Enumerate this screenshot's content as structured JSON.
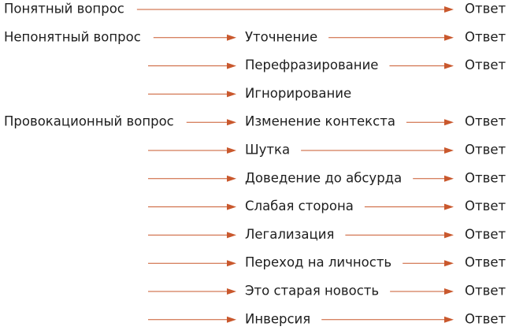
{
  "rows": [
    {
      "question": "Понятный вопрос",
      "answer": "Ответ"
    },
    {
      "question": "Непонятный вопрос",
      "technique": "Уточнение",
      "answer": "Ответ"
    },
    {
      "technique": "Перефразирование",
      "answer": "Ответ"
    },
    {
      "technique": "Игнорирование"
    },
    {
      "question": "Провокационный вопрос",
      "technique": "Изменение контекста",
      "answer": "Ответ"
    },
    {
      "technique": "Шутка",
      "answer": "Ответ"
    },
    {
      "technique": "Доведение до абсурда",
      "answer": "Ответ"
    },
    {
      "technique": "Слабая сторона",
      "answer": "Ответ"
    },
    {
      "technique": "Легализация",
      "answer": "Ответ"
    },
    {
      "technique": "Переход на личность",
      "answer": "Ответ"
    },
    {
      "technique": "Это старая новость",
      "answer": "Ответ"
    },
    {
      "technique": "Инверсия",
      "answer": "Ответ"
    }
  ]
}
